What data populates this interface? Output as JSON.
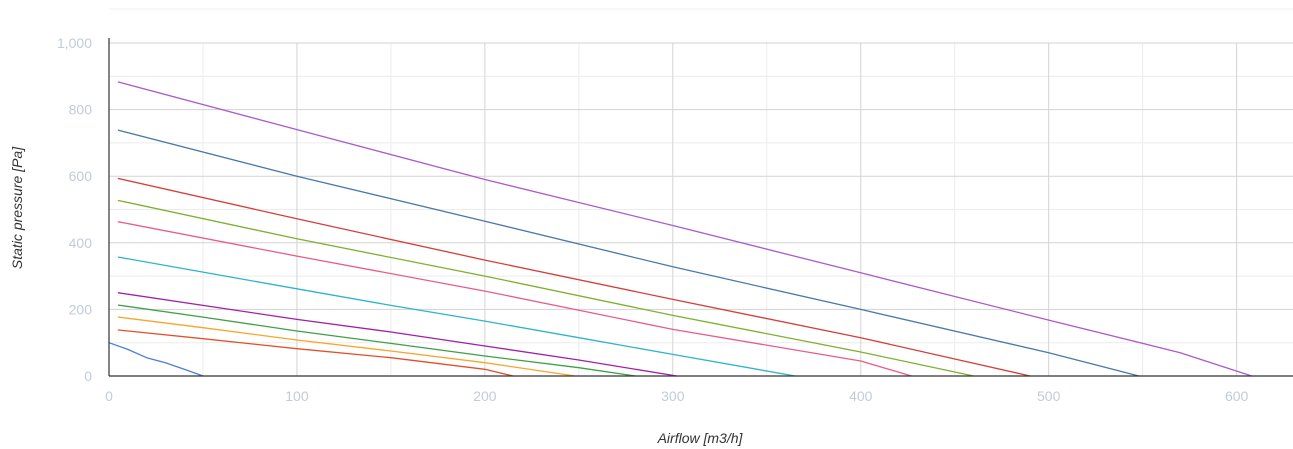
{
  "chart_data": {
    "type": "line",
    "title": "",
    "xlabel": "Airflow [m3/h]",
    "ylabel": "Static pressure [Pa]",
    "xlim": [
      0,
      630
    ],
    "ylim": [
      0,
      1000
    ],
    "x_ticks": [
      "0",
      "100",
      "200",
      "300",
      "400",
      "500",
      "600"
    ],
    "y_ticks": [
      "0",
      "200",
      "400",
      "600",
      "800",
      "1,000"
    ],
    "grid": true,
    "legend": "none",
    "colors": {
      "major_grid": "#d3d3d3",
      "minor_grid": "#ececec",
      "axis_line": "#333333",
      "tick_label": "#c2cbd9",
      "axis_title": "#333333"
    },
    "series": [
      {
        "color": "#4a7fd4",
        "points": [
          [
            0,
            100
          ],
          [
            10,
            80
          ],
          [
            20,
            55
          ],
          [
            30,
            40
          ],
          [
            40,
            20
          ],
          [
            50,
            0
          ]
        ]
      },
      {
        "color": "#e0502d",
        "points": [
          [
            5,
            138
          ],
          [
            50,
            112
          ],
          [
            100,
            82
          ],
          [
            150,
            55
          ],
          [
            200,
            20
          ],
          [
            215,
            0
          ]
        ]
      },
      {
        "color": "#f7a52a",
        "points": [
          [
            5,
            177
          ],
          [
            50,
            145
          ],
          [
            100,
            108
          ],
          [
            150,
            75
          ],
          [
            200,
            40
          ],
          [
            248,
            0
          ]
        ]
      },
      {
        "color": "#3ea046",
        "points": [
          [
            5,
            213
          ],
          [
            50,
            177
          ],
          [
            100,
            135
          ],
          [
            150,
            98
          ],
          [
            200,
            60
          ],
          [
            250,
            25
          ],
          [
            280,
            0
          ]
        ]
      },
      {
        "color": "#a020a8",
        "points": [
          [
            5,
            250
          ],
          [
            50,
            212
          ],
          [
            100,
            170
          ],
          [
            150,
            132
          ],
          [
            200,
            90
          ],
          [
            250,
            48
          ],
          [
            302,
            0
          ]
        ]
      },
      {
        "color": "#2db5c7",
        "points": [
          [
            5,
            357
          ],
          [
            50,
            312
          ],
          [
            100,
            262
          ],
          [
            150,
            212
          ],
          [
            200,
            165
          ],
          [
            250,
            115
          ],
          [
            300,
            65
          ],
          [
            365,
            0
          ]
        ]
      },
      {
        "color": "#e85c8a",
        "points": [
          [
            5,
            463
          ],
          [
            100,
            360
          ],
          [
            200,
            255
          ],
          [
            300,
            140
          ],
          [
            400,
            45
          ],
          [
            427,
            0
          ]
        ]
      },
      {
        "color": "#7db02e",
        "points": [
          [
            5,
            527
          ],
          [
            100,
            412
          ],
          [
            200,
            300
          ],
          [
            300,
            182
          ],
          [
            400,
            72
          ],
          [
            460,
            0
          ]
        ]
      },
      {
        "color": "#d63d3a",
        "points": [
          [
            5,
            593
          ],
          [
            100,
            472
          ],
          [
            200,
            348
          ],
          [
            300,
            230
          ],
          [
            400,
            115
          ],
          [
            490,
            0
          ]
        ]
      },
      {
        "color": "#4a78a8",
        "points": [
          [
            5,
            738
          ],
          [
            100,
            600
          ],
          [
            200,
            465
          ],
          [
            300,
            328
          ],
          [
            400,
            200
          ],
          [
            500,
            70
          ],
          [
            548,
            0
          ]
        ]
      },
      {
        "color": "#a85cc8",
        "points": [
          [
            5,
            883
          ],
          [
            100,
            740
          ],
          [
            200,
            590
          ],
          [
            300,
            452
          ],
          [
            400,
            310
          ],
          [
            500,
            168
          ],
          [
            570,
            70
          ],
          [
            608,
            0
          ]
        ]
      }
    ]
  }
}
